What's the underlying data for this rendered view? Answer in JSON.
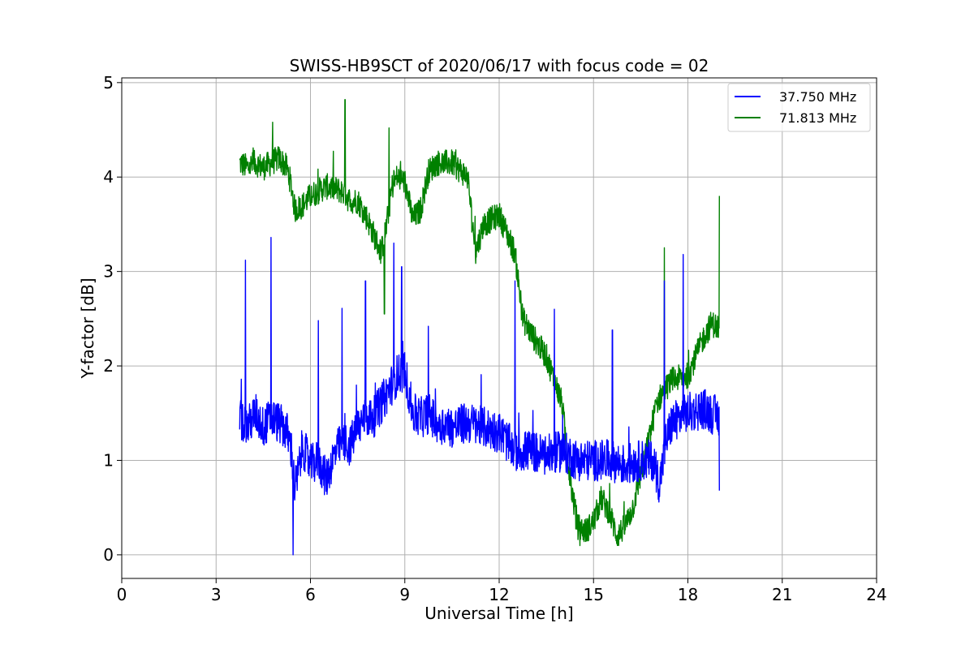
{
  "chart_data": {
    "type": "line",
    "title": "SWISS-HB9SCT of 2020/06/17 with focus code = 02",
    "xlabel": "Universal Time [h]",
    "ylabel": "Y-factor [dB]",
    "xlim": [
      0,
      24
    ],
    "ylim": [
      -0.25,
      5.05
    ],
    "xticks": [
      0,
      3,
      6,
      9,
      12,
      15,
      18,
      21,
      24
    ],
    "xtick_labels": [
      "0",
      "3",
      "6",
      "9",
      "12",
      "15",
      "18",
      "21",
      "24"
    ],
    "yticks": [
      0,
      1,
      2,
      3,
      4,
      5
    ],
    "ytick_labels": [
      "0",
      "1",
      "2",
      "3",
      "4",
      "5"
    ],
    "grid": true,
    "legend_position": "top-right",
    "series": [
      {
        "name": "37.750 MHz",
        "color": "#0000ff",
        "x": [
          3.75,
          4.0,
          4.25,
          4.5,
          4.75,
          5.0,
          5.25,
          5.4,
          5.5,
          5.6,
          5.75,
          6.0,
          6.25,
          6.5,
          6.75,
          7.0,
          7.25,
          7.5,
          7.75,
          8.0,
          8.25,
          8.5,
          8.75,
          9.0,
          9.25,
          9.5,
          9.75,
          10.0,
          10.5,
          11.0,
          11.5,
          12.0,
          12.5,
          13.0,
          13.5,
          14.0,
          14.5,
          15.0,
          15.5,
          16.0,
          16.5,
          16.9,
          17.1,
          17.3,
          17.5,
          18.0,
          18.5,
          19.0
        ],
        "y": [
          1.45,
          1.35,
          1.5,
          1.35,
          1.45,
          1.4,
          1.3,
          1.1,
          0.7,
          0.85,
          1.15,
          0.95,
          1.0,
          0.8,
          1.05,
          1.2,
          1.15,
          1.35,
          1.45,
          1.45,
          1.6,
          1.75,
          1.9,
          1.95,
          1.5,
          1.45,
          1.5,
          1.4,
          1.35,
          1.4,
          1.35,
          1.3,
          1.1,
          1.1,
          1.05,
          1.1,
          1.0,
          1.0,
          1.0,
          0.95,
          1.0,
          1.0,
          0.75,
          1.2,
          1.4,
          1.5,
          1.55,
          1.45
        ]
      },
      {
        "name": "71.813 MHz",
        "color": "#008000",
        "x": [
          3.75,
          4.0,
          4.25,
          4.5,
          4.75,
          5.0,
          5.25,
          5.4,
          5.5,
          5.75,
          6.0,
          6.5,
          7.0,
          7.25,
          7.5,
          7.75,
          8.0,
          8.25,
          8.4,
          8.6,
          8.75,
          9.0,
          9.25,
          9.5,
          9.75,
          10.0,
          10.5,
          11.0,
          11.25,
          11.5,
          12.0,
          12.5,
          12.75,
          13.0,
          13.5,
          14.0,
          14.25,
          14.5,
          14.75,
          15.0,
          15.25,
          15.5,
          15.75,
          16.0,
          16.25,
          16.5,
          16.75,
          17.0,
          17.25,
          17.5,
          18.0,
          18.5,
          18.75,
          19.0
        ],
        "y": [
          4.15,
          4.1,
          4.15,
          4.1,
          4.15,
          4.2,
          4.1,
          3.9,
          3.65,
          3.7,
          3.8,
          3.9,
          3.85,
          3.75,
          3.75,
          3.6,
          3.4,
          3.2,
          3.45,
          3.9,
          4.0,
          3.95,
          3.55,
          3.65,
          4.05,
          4.15,
          4.15,
          4.0,
          3.2,
          3.5,
          3.6,
          3.2,
          2.5,
          2.35,
          2.1,
          1.6,
          0.8,
          0.3,
          0.25,
          0.35,
          0.6,
          0.45,
          0.2,
          0.3,
          0.5,
          0.85,
          1.2,
          1.6,
          1.75,
          1.85,
          1.9,
          2.3,
          2.45,
          2.4
        ]
      }
    ],
    "spikes": [
      {
        "series": 0,
        "x": 3.93,
        "y": 3.12
      },
      {
        "series": 0,
        "x": 4.75,
        "y": 3.36
      },
      {
        "series": 0,
        "x": 5.45,
        "y": 0.0
      },
      {
        "series": 0,
        "x": 6.25,
        "y": 2.48
      },
      {
        "series": 0,
        "x": 7.0,
        "y": 2.61
      },
      {
        "series": 0,
        "x": 7.75,
        "y": 2.9
      },
      {
        "series": 0,
        "x": 8.65,
        "y": 3.3
      },
      {
        "series": 0,
        "x": 8.9,
        "y": 3.05
      },
      {
        "series": 0,
        "x": 9.75,
        "y": 2.42
      },
      {
        "series": 0,
        "x": 12.5,
        "y": 2.9
      },
      {
        "series": 0,
        "x": 13.75,
        "y": 2.6
      },
      {
        "series": 0,
        "x": 15.6,
        "y": 2.38
      },
      {
        "series": 0,
        "x": 17.25,
        "y": 2.9
      },
      {
        "series": 0,
        "x": 17.85,
        "y": 3.18
      },
      {
        "series": 0,
        "x": 19.0,
        "y": 0.68
      },
      {
        "series": 1,
        "x": 4.8,
        "y": 4.58
      },
      {
        "series": 1,
        "x": 7.1,
        "y": 4.82
      },
      {
        "series": 1,
        "x": 8.5,
        "y": 4.52
      },
      {
        "series": 1,
        "x": 8.35,
        "y": 2.55
      },
      {
        "series": 1,
        "x": 17.25,
        "y": 3.25
      },
      {
        "series": 1,
        "x": 19.0,
        "y": 3.8
      }
    ]
  }
}
